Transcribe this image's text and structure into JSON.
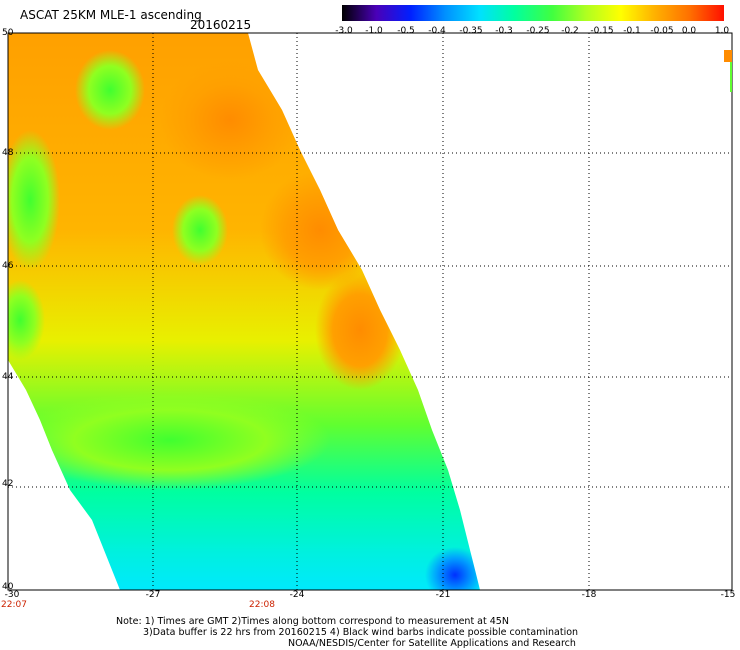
{
  "header": {
    "title": "ASCAT 25KM MLE-1 ascending",
    "date": "20160215"
  },
  "colorbar": {
    "labels": [
      "-3.0",
      "-1.0",
      "-0.5",
      "-0.4",
      "-0.35",
      "-0.3",
      "-0.25",
      "-0.2",
      "-0.15",
      "-0.1",
      "-0.05",
      "0.0",
      "1.0"
    ],
    "colors": [
      "#000000",
      "#4a00b8",
      "#0020ff",
      "#0090ff",
      "#00e0ff",
      "#00ffa0",
      "#40ff40",
      "#b0ff20",
      "#ffff00",
      "#ffb000",
      "#ff7000",
      "#ff0000"
    ]
  },
  "axes": {
    "lat_labels": [
      "50",
      "48",
      "46",
      "44",
      "42",
      "40"
    ],
    "lon_labels": [
      "-30",
      "-27",
      "-24",
      "-21",
      "-18",
      "-15"
    ],
    "time_labels": [
      "22:07",
      "22:08"
    ]
  },
  "notes": {
    "line1": "Note: 1) Times are GMT 2)Times along bottom correspond to measurement at 45N",
    "line2": "3)Data buffer is 22 hrs from 20160215 4) Black wind barbs indicate possible contamination",
    "line3": "NOAA/NESDIS/Center for Satellite Applications and Research"
  }
}
